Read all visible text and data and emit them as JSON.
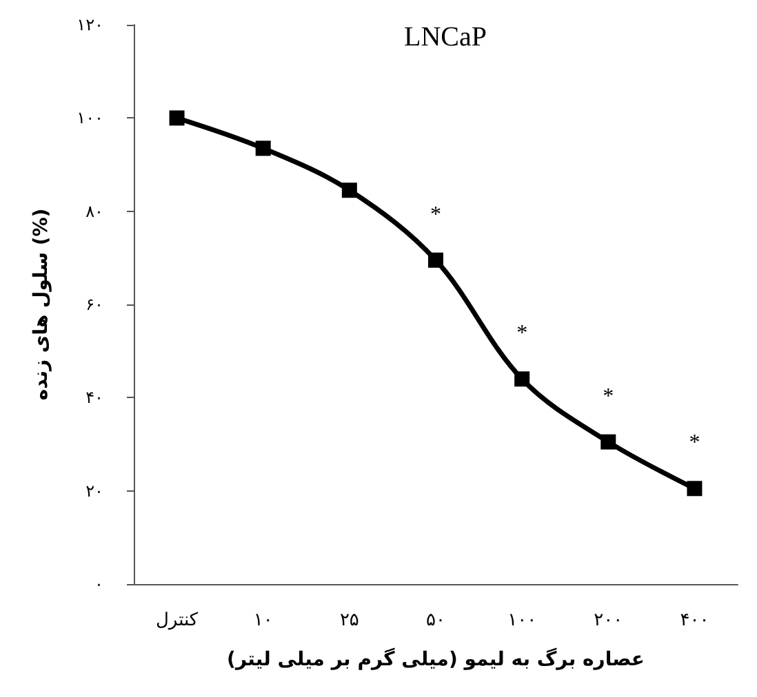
{
  "chart_data": {
    "type": "line",
    "title": "LNCaP",
    "xlabel": "عصاره برگ به لیمو (میلی گرم بر میلی لیتر)",
    "ylabel": "سلول های زنده (%)",
    "categories": [
      "کنترل",
      "۱۰",
      "۲۵",
      "۵۰",
      "۱۰۰",
      "۲۰۰",
      "۴۰۰"
    ],
    "series": [
      {
        "color": "#000000",
        "values": [
          100,
          93.5,
          84.5,
          69.5,
          44,
          30.5,
          20.5
        ]
      }
    ],
    "ylim": [
      0,
      120
    ],
    "yticks": [
      {
        "value": 0,
        "label": "۰"
      },
      {
        "value": 20,
        "label": "۲۰"
      },
      {
        "value": 40,
        "label": "۴۰"
      },
      {
        "value": 60,
        "label": "۶۰"
      },
      {
        "value": 80,
        "label": "۸۰"
      },
      {
        "value": 100,
        "label": "۱۰۰"
      },
      {
        "value": 120,
        "label": "۱۲۰"
      }
    ],
    "annotations": [
      {
        "text": "*",
        "x": "۵۰",
        "y": 69.5
      },
      {
        "text": "*",
        "x": "۱۰۰",
        "y": 44
      },
      {
        "text": "*",
        "x": "۲۰۰",
        "y": 30.5
      },
      {
        "text": "*",
        "x": "۴۰۰",
        "y": 20.5
      }
    ],
    "grid": false,
    "marker": "square",
    "line_style": "solid"
  }
}
